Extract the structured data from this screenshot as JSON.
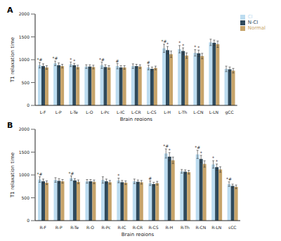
{
  "chart_data": [
    {
      "type": "bar",
      "title": "A",
      "x_label": "Brain regions",
      "y_label": "T1 relaxation time",
      "categories": [
        "L-F",
        "L-P",
        "L-Te",
        "L-O",
        "L-Pc",
        "L-IC",
        "L-CR",
        "L-CS",
        "L-H",
        "L-Th",
        "L-CN",
        "L-LN",
        "gCC"
      ],
      "series": [
        {
          "name": "CI",
          "color": "#bcdcf0",
          "values": [
            880,
            920,
            900,
            850,
            880,
            860,
            860,
            830,
            1250,
            1230,
            1150,
            1380,
            800
          ],
          "errors": [
            60,
            50,
            50,
            40,
            70,
            60,
            50,
            50,
            90,
            80,
            70,
            70,
            60
          ],
          "marks": [
            "*#",
            "*#",
            "*",
            null,
            "*#",
            "#",
            null,
            "#",
            "*#",
            "*",
            "*",
            null,
            null
          ]
        },
        {
          "name": "N-CI",
          "color": "#2f4a5c",
          "values": [
            860,
            880,
            880,
            850,
            840,
            830,
            860,
            800,
            1210,
            1190,
            1140,
            1370,
            790
          ],
          "errors": [
            50,
            50,
            40,
            40,
            50,
            40,
            40,
            40,
            80,
            70,
            70,
            60,
            50
          ],
          "marks": [
            null,
            null,
            "*",
            null,
            null,
            null,
            null,
            null,
            "*",
            "*",
            "*",
            null,
            null
          ]
        },
        {
          "name": "Normal",
          "color": "#c7a46a",
          "values": [
            830,
            860,
            840,
            840,
            830,
            830,
            850,
            820,
            1120,
            1090,
            1080,
            1340,
            760
          ],
          "errors": [
            40,
            40,
            40,
            40,
            40,
            40,
            40,
            40,
            70,
            60,
            60,
            70,
            50
          ],
          "marks": [
            null,
            null,
            null,
            null,
            null,
            null,
            null,
            null,
            null,
            null,
            null,
            null,
            null
          ]
        }
      ],
      "ylim": [
        0,
        2000
      ],
      "yticks": [
        0,
        500,
        1000,
        1500,
        2000
      ],
      "grid": false,
      "legend": "upper right"
    },
    {
      "type": "bar",
      "title": "B",
      "x_label": "Brain regions",
      "y_label": "T1 relaxation time",
      "categories": [
        "R-F",
        "R-P",
        "R-Te",
        "R-O",
        "R-Pc",
        "R-IC",
        "R-CR",
        "R-CS",
        "R-H",
        "R-Th",
        "R-CN",
        "R-LN",
        "sCC"
      ],
      "series": [
        {
          "name": "CI",
          "color": "#bcdcf0",
          "values": [
            900,
            890,
            930,
            860,
            890,
            880,
            860,
            820,
            1470,
            1080,
            1450,
            1230,
            800
          ],
          "errors": [
            60,
            50,
            50,
            40,
            70,
            50,
            50,
            50,
            100,
            40,
            90,
            80,
            50
          ],
          "marks": [
            "*#",
            null,
            "*#",
            null,
            null,
            "*",
            null,
            "#",
            "*#",
            null,
            "*#",
            "*",
            "*#"
          ]
        },
        {
          "name": "N-CI",
          "color": "#2f4a5c",
          "values": [
            860,
            870,
            880,
            860,
            860,
            840,
            850,
            800,
            1400,
            1070,
            1350,
            1170,
            760
          ],
          "errors": [
            50,
            50,
            40,
            40,
            50,
            40,
            40,
            40,
            90,
            40,
            80,
            70,
            40
          ],
          "marks": [
            null,
            null,
            null,
            null,
            null,
            null,
            null,
            null,
            "*",
            null,
            "*",
            "*",
            null
          ]
        },
        {
          "name": "Normal",
          "color": "#c7a46a",
          "values": [
            830,
            860,
            850,
            850,
            840,
            830,
            840,
            820,
            1320,
            1060,
            1240,
            1120,
            740
          ],
          "errors": [
            40,
            40,
            40,
            40,
            40,
            40,
            40,
            40,
            70,
            40,
            70,
            60,
            40
          ],
          "marks": [
            null,
            null,
            null,
            null,
            null,
            null,
            null,
            null,
            null,
            null,
            null,
            null,
            null
          ]
        }
      ],
      "ylim": [
        0,
        2000
      ],
      "yticks": [
        0,
        500,
        1000,
        1500,
        2000
      ],
      "grid": false
    }
  ]
}
